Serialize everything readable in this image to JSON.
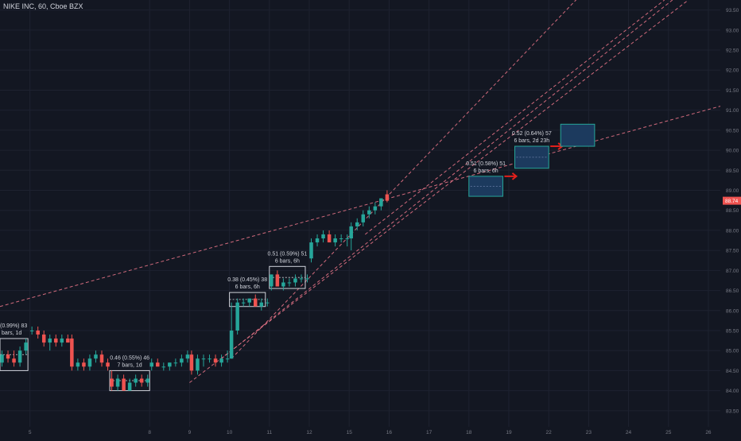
{
  "chart_data": {
    "type": "candlestick",
    "title": "NIKE INC, 60, Cboe BZX",
    "x_ticks": [
      {
        "label": "5",
        "t": 5
      },
      {
        "label": "8",
        "t": 8
      },
      {
        "label": "9",
        "t": 9
      },
      {
        "label": "10",
        "t": 10
      },
      {
        "label": "11",
        "t": 11
      },
      {
        "label": "12",
        "t": 12
      },
      {
        "label": "15",
        "t": 13
      },
      {
        "label": "16",
        "t": 14
      },
      {
        "label": "17",
        "t": 15
      },
      {
        "label": "18",
        "t": 16
      },
      {
        "label": "19",
        "t": 17
      },
      {
        "label": "22",
        "t": 18
      },
      {
        "label": "23",
        "t": 19
      },
      {
        "label": "24",
        "t": 20
      },
      {
        "label": "25",
        "t": 21
      },
      {
        "label": "26",
        "t": 22
      }
    ],
    "y_ticks": [
      83.5,
      84.0,
      84.5,
      85.0,
      85.5,
      86.0,
      86.5,
      87.0,
      87.5,
      88.0,
      88.5,
      89.0,
      89.5,
      90.0,
      90.5,
      91.0,
      91.5,
      92.0,
      92.5,
      93.0,
      93.5
    ],
    "ylim": [
      83.1,
      93.75
    ],
    "xlim": [
      4.25,
      22.3
    ],
    "last_price": "88.74",
    "last_value": 88.74,
    "colors": {
      "up": "#26a69a",
      "down": "#ef5350",
      "trend": "#e57386",
      "label_bg": "#ef5350",
      "box": "#d1d4dc",
      "proj_fill": "#1c3a5e",
      "proj_stroke": "#26a69a",
      "arrow": "#e3201b"
    },
    "candles": [
      [
        4.3,
        84.7,
        85.0,
        84.6,
        84.9
      ],
      [
        4.45,
        84.9,
        85.0,
        84.7,
        84.8
      ],
      [
        4.6,
        84.8,
        85.0,
        84.6,
        84.7
      ],
      [
        4.75,
        84.7,
        85.1,
        84.6,
        85.0
      ],
      [
        4.9,
        85.0,
        85.3,
        84.9,
        85.2
      ],
      [
        5.05,
        85.5,
        85.6,
        85.4,
        85.5
      ],
      [
        5.2,
        85.5,
        85.6,
        85.3,
        85.4
      ],
      [
        5.35,
        85.4,
        85.5,
        85.1,
        85.2
      ],
      [
        5.5,
        85.2,
        85.4,
        85.0,
        85.3
      ],
      [
        5.65,
        85.3,
        85.4,
        85.1,
        85.2
      ],
      [
        5.8,
        85.2,
        85.4,
        85.1,
        85.3
      ],
      [
        5.95,
        85.3,
        85.4,
        85.2,
        85.2
      ],
      [
        6.05,
        85.3,
        85.4,
        84.5,
        84.6
      ],
      [
        6.2,
        84.6,
        84.8,
        84.5,
        84.7
      ],
      [
        6.35,
        84.7,
        84.8,
        84.5,
        84.6
      ],
      [
        6.5,
        84.6,
        84.9,
        84.5,
        84.8
      ],
      [
        6.65,
        84.8,
        85.0,
        84.7,
        84.9
      ],
      [
        6.8,
        84.9,
        85.0,
        84.6,
        84.7
      ],
      [
        6.95,
        84.7,
        84.8,
        84.5,
        84.6
      ],
      [
        7.05,
        84.3,
        84.5,
        84.0,
        84.1
      ],
      [
        7.2,
        84.1,
        84.4,
        84.0,
        84.3
      ],
      [
        7.35,
        84.3,
        84.4,
        84.0,
        84.0
      ],
      [
        7.5,
        84.0,
        84.3,
        84.0,
        84.2
      ],
      [
        7.65,
        84.2,
        84.4,
        84.1,
        84.3
      ],
      [
        7.8,
        84.3,
        84.4,
        84.1,
        84.2
      ],
      [
        7.95,
        84.2,
        84.4,
        84.1,
        84.3
      ],
      [
        8.05,
        84.6,
        84.8,
        84.5,
        84.7
      ],
      [
        8.2,
        84.7,
        84.8,
        84.6,
        84.6
      ],
      [
        8.35,
        84.6,
        84.7,
        84.5,
        84.6
      ],
      [
        8.5,
        84.6,
        84.7,
        84.5,
        84.7
      ],
      [
        8.65,
        84.7,
        84.8,
        84.6,
        84.7
      ],
      [
        8.8,
        84.7,
        84.9,
        84.6,
        84.8
      ],
      [
        8.95,
        84.8,
        85.0,
        84.7,
        84.9
      ],
      [
        9.05,
        84.9,
        85.0,
        84.4,
        84.5
      ],
      [
        9.2,
        84.5,
        84.9,
        84.4,
        84.8
      ],
      [
        9.35,
        84.8,
        84.9,
        84.6,
        84.8
      ],
      [
        9.5,
        84.8,
        84.9,
        84.7,
        84.8
      ],
      [
        9.65,
        84.8,
        84.9,
        84.6,
        84.7
      ],
      [
        9.8,
        84.7,
        84.9,
        84.6,
        84.8
      ],
      [
        9.95,
        84.8,
        85.0,
        84.7,
        84.8
      ],
      [
        10.05,
        84.8,
        86.2,
        84.8,
        85.5
      ],
      [
        10.2,
        85.5,
        86.3,
        85.4,
        86.2
      ],
      [
        10.35,
        86.2,
        86.3,
        86.1,
        86.2
      ],
      [
        10.5,
        86.2,
        86.3,
        86.1,
        86.3
      ],
      [
        10.65,
        86.3,
        86.4,
        86.1,
        86.1
      ],
      [
        10.8,
        86.1,
        86.3,
        86.0,
        86.2
      ],
      [
        10.95,
        86.2,
        86.3,
        86.1,
        86.2
      ],
      [
        11.05,
        86.6,
        86.9,
        86.5,
        86.9
      ],
      [
        11.2,
        86.9,
        87.0,
        86.6,
        86.6
      ],
      [
        11.35,
        86.6,
        86.8,
        86.5,
        86.7
      ],
      [
        11.5,
        86.7,
        86.8,
        86.6,
        86.7
      ],
      [
        11.65,
        86.7,
        86.9,
        86.6,
        86.8
      ],
      [
        11.8,
        86.8,
        86.9,
        86.7,
        86.8
      ],
      [
        11.95,
        86.8,
        86.9,
        86.7,
        86.8
      ],
      [
        12.05,
        87.3,
        87.8,
        87.2,
        87.7
      ],
      [
        12.2,
        87.7,
        87.9,
        87.6,
        87.8
      ],
      [
        12.35,
        87.8,
        88.0,
        87.7,
        87.9
      ],
      [
        12.5,
        87.9,
        88.0,
        87.7,
        87.7
      ],
      [
        12.65,
        87.7,
        87.9,
        87.6,
        87.8
      ],
      [
        12.8,
        87.8,
        87.9,
        87.7,
        87.8
      ],
      [
        12.95,
        87.8,
        87.9,
        87.6,
        87.8
      ],
      [
        13.05,
        87.8,
        88.2,
        87.5,
        88.1
      ],
      [
        13.2,
        88.1,
        88.3,
        88.0,
        88.2
      ],
      [
        13.35,
        88.2,
        88.5,
        88.1,
        88.4
      ],
      [
        13.5,
        88.4,
        88.6,
        88.3,
        88.5
      ],
      [
        13.65,
        88.5,
        88.7,
        88.4,
        88.6
      ],
      [
        13.8,
        88.6,
        88.8,
        88.5,
        88.8
      ],
      [
        13.95,
        88.9,
        89.0,
        88.7,
        88.74
      ]
    ],
    "trendlines": [
      [
        4.25,
        86.1,
        22.3,
        91.1
      ],
      [
        9.8,
        84.8,
        22.3,
        94.7
      ],
      [
        10.05,
        84.8,
        22.3,
        97.5
      ],
      [
        9.0,
        84.2,
        21.5,
        93.75
      ],
      [
        13.4,
        87.9,
        20.9,
        93.75
      ]
    ],
    "measure_boxes": [
      {
        "x1": 4.25,
        "x2": 4.95,
        "y1": 84.5,
        "y2": 85.3,
        "line1": "(0.99%) 83",
        "line2": "bars, 1d"
      },
      {
        "x1": 7.0,
        "x2": 8.0,
        "y1": 84.0,
        "y2": 84.5,
        "line1": "0.46 (0.55%) 46",
        "line2": "7 bars, 1d"
      },
      {
        "x1": 10.0,
        "x2": 10.9,
        "y1": 86.1,
        "y2": 86.45,
        "line1": "0.38 (0.45%) 38",
        "line2": "6 bars, 6h"
      },
      {
        "x1": 11.0,
        "x2": 11.9,
        "y1": 86.55,
        "y2": 87.1,
        "line1": "0.51 (0.59%) 51",
        "line2": "6 bars, 6h"
      }
    ],
    "projections": [
      {
        "x1": 16.0,
        "x2": 16.85,
        "y1": 88.85,
        "y2": 89.35,
        "line1": "0.51 (0.58%) 51",
        "line2": "6 bars, 6h",
        "arrow_y": 89.35
      },
      {
        "x1": 17.15,
        "x2": 18.0,
        "y1": 89.55,
        "y2": 90.1,
        "line1": "0.52 (0.64%) 57",
        "line2": "6 bars, 2d 23h",
        "arrow_y": 90.1
      },
      {
        "x1": 18.3,
        "x2": 19.15,
        "y1": 90.1,
        "y2": 90.65,
        "line1": "",
        "line2": "",
        "arrow_y": null
      }
    ]
  }
}
